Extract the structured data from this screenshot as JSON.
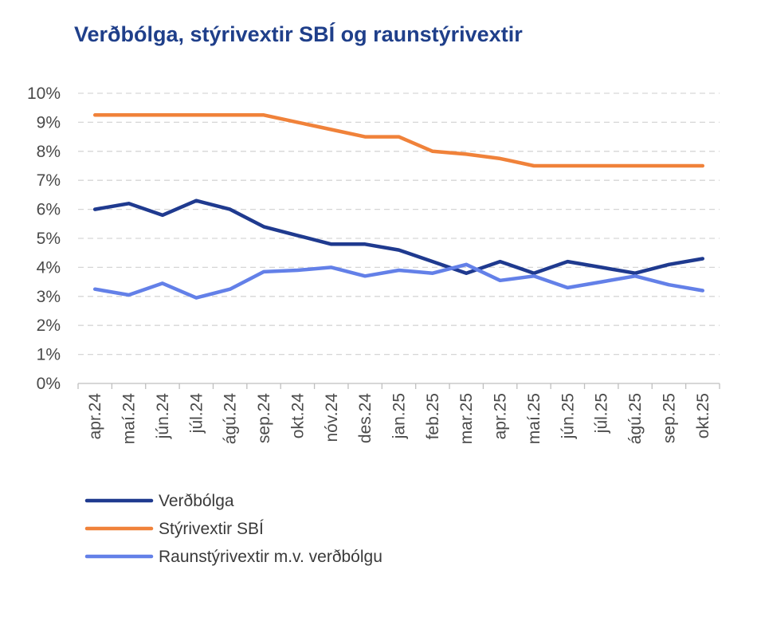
{
  "chart_data": {
    "type": "line",
    "title": "Verðbólga, stýrivextir SBÍ og raunstýrivextir",
    "xlabel": "",
    "ylabel": "",
    "ylim": [
      0,
      10
    ],
    "yticks": [
      "0%",
      "1%",
      "2%",
      "3%",
      "4%",
      "5%",
      "6%",
      "7%",
      "8%",
      "9%",
      "10%"
    ],
    "grid": "horizontal-dashed",
    "legend_position": "bottom-left",
    "categories": [
      "apr.24",
      "maí.24",
      "jún.24",
      "júl.24",
      "ágú.24",
      "sep.24",
      "okt.24",
      "nóv.24",
      "des.24",
      "jan.25",
      "feb.25",
      "mar.25",
      "apr.25",
      "maí.25",
      "jún.25",
      "júl.25",
      "ágú.25",
      "sep.25",
      "okt.25"
    ],
    "series": [
      {
        "name": "Verðbólga",
        "color": "#1f3a8f",
        "values": [
          6.0,
          6.2,
          5.8,
          6.3,
          6.0,
          5.4,
          5.1,
          4.8,
          4.8,
          4.6,
          4.2,
          3.8,
          4.2,
          3.8,
          4.2,
          4.0,
          3.8,
          4.1,
          4.3
        ]
      },
      {
        "name": "Stýrivextir SBÍ",
        "color": "#f0823a",
        "values": [
          9.25,
          9.25,
          9.25,
          9.25,
          9.25,
          9.25,
          9.0,
          8.75,
          8.5,
          8.5,
          8.0,
          7.9,
          7.75,
          7.5,
          7.5,
          7.5,
          7.5,
          7.5,
          7.5
        ]
      },
      {
        "name": "Raunstýrivextir m.v. verðbólgu",
        "color": "#6380e8",
        "values": [
          3.25,
          3.05,
          3.45,
          2.95,
          3.25,
          3.85,
          3.9,
          4.0,
          3.7,
          3.9,
          3.8,
          4.1,
          3.55,
          3.7,
          3.3,
          3.5,
          3.7,
          3.4,
          3.2
        ]
      }
    ]
  }
}
